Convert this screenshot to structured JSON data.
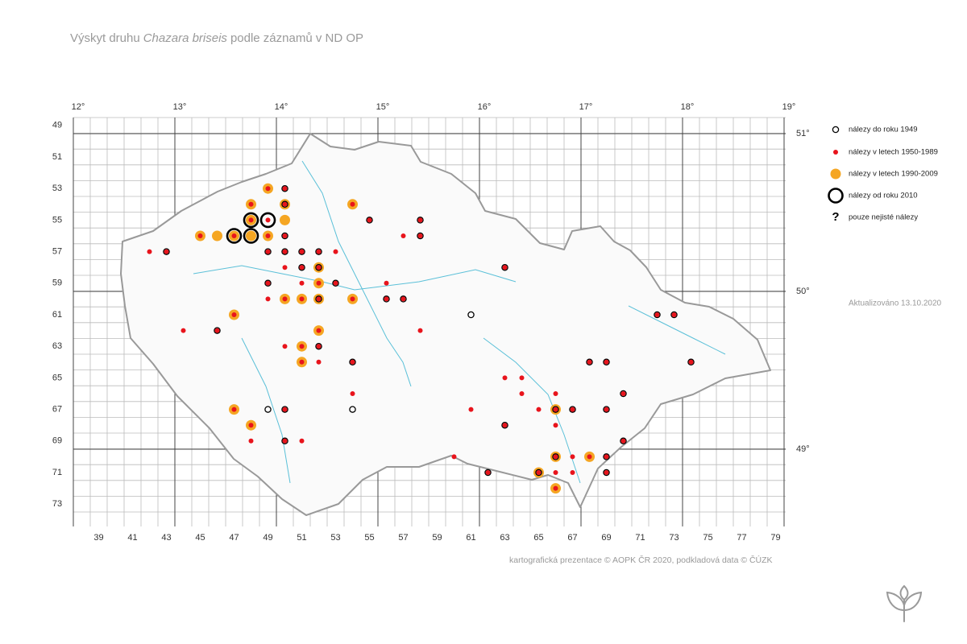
{
  "title": [
    "Výskyt druhu",
    "Chazara briseis",
    "podle záznamů v ND OP"
  ],
  "lon_ticks": [
    {
      "value": 12,
      "label": "12°"
    },
    {
      "value": 13,
      "label": "13°"
    },
    {
      "value": 14,
      "label": "14°"
    },
    {
      "value": 15,
      "label": "15°"
    },
    {
      "value": 16,
      "label": "16°"
    },
    {
      "value": 17,
      "label": "17°"
    },
    {
      "value": 18,
      "label": "18°"
    },
    {
      "value": 19,
      "label": "19°"
    }
  ],
  "lat_ticks": [
    {
      "value": 51,
      "label": "51°"
    },
    {
      "value": 50,
      "label": "50°"
    },
    {
      "value": 49,
      "label": "49°"
    }
  ],
  "col_ticks": [
    39,
    41,
    43,
    45,
    47,
    49,
    51,
    53,
    55,
    57,
    59,
    61,
    63,
    65,
    67,
    69,
    71,
    73,
    75,
    77,
    79
  ],
  "row_ticks": [
    49,
    51,
    53,
    55,
    57,
    59,
    61,
    63,
    65,
    67,
    69,
    71,
    73
  ],
  "legend": [
    "nálezy do roku 1949",
    "nálezy v letech 1950-1989",
    "nálezy v letech 1990-2009",
    "nálezy od roku 2010",
    "pouze nejisté nálezy"
  ],
  "uncertain_mark": "?",
  "updated": "Aktualizováno 13.10.2020",
  "credit": "kartografická prezentace © AOPK ČR 2020, podkladová data © ČÚZK",
  "points": [
    [
      49,
      53,
      [
        2,
        1
      ]
    ],
    [
      50,
      53,
      [
        0,
        1
      ]
    ],
    [
      48,
      54,
      [
        2,
        1
      ]
    ],
    [
      50,
      54,
      [
        2,
        0,
        1
      ]
    ],
    [
      54,
      54,
      [
        2,
        1
      ]
    ],
    [
      48,
      55,
      [
        3,
        2,
        1
      ]
    ],
    [
      49,
      55,
      [
        3,
        1
      ]
    ],
    [
      50,
      55,
      [
        2
      ]
    ],
    [
      55,
      55,
      [
        0,
        1
      ]
    ],
    [
      58,
      55,
      [
        0,
        1
      ]
    ],
    [
      45,
      56,
      [
        2,
        1
      ]
    ],
    [
      46,
      56,
      [
        2
      ]
    ],
    [
      47,
      56,
      [
        3,
        2,
        1
      ]
    ],
    [
      48,
      56,
      [
        3,
        2
      ]
    ],
    [
      49,
      56,
      [
        2,
        1
      ]
    ],
    [
      50,
      56,
      [
        0,
        1
      ]
    ],
    [
      57,
      56,
      [
        1
      ]
    ],
    [
      58,
      56,
      [
        0,
        1
      ]
    ],
    [
      42,
      57,
      [
        1
      ]
    ],
    [
      43,
      57,
      [
        0,
        1
      ]
    ],
    [
      49,
      57,
      [
        0,
        1
      ]
    ],
    [
      50,
      57,
      [
        0,
        1
      ]
    ],
    [
      51,
      57,
      [
        0,
        1
      ]
    ],
    [
      52,
      57,
      [
        0,
        1
      ]
    ],
    [
      53,
      57,
      [
        1
      ]
    ],
    [
      50,
      58,
      [
        1
      ]
    ],
    [
      51,
      58,
      [
        0,
        1
      ]
    ],
    [
      52,
      58,
      [
        2,
        0,
        1
      ]
    ],
    [
      63,
      58,
      [
        0,
        1
      ]
    ],
    [
      49,
      59,
      [
        0,
        1
      ]
    ],
    [
      51,
      59,
      [
        1
      ]
    ],
    [
      52,
      59,
      [
        2,
        1
      ]
    ],
    [
      53,
      59,
      [
        0,
        1
      ]
    ],
    [
      56,
      59,
      [
        1
      ]
    ],
    [
      49,
      60,
      [
        1
      ]
    ],
    [
      50,
      60,
      [
        2,
        1
      ]
    ],
    [
      51,
      60,
      [
        2,
        1
      ]
    ],
    [
      52,
      60,
      [
        2,
        0,
        1
      ]
    ],
    [
      54,
      60,
      [
        2,
        1
      ]
    ],
    [
      56,
      60,
      [
        0,
        1
      ]
    ],
    [
      57,
      60,
      [
        0,
        1
      ]
    ],
    [
      47,
      61,
      [
        2,
        1
      ]
    ],
    [
      61,
      61,
      [
        0
      ]
    ],
    [
      72,
      61,
      [
        0,
        1
      ]
    ],
    [
      73,
      61,
      [
        0,
        1
      ]
    ],
    [
      44,
      62,
      [
        1
      ]
    ],
    [
      46,
      62,
      [
        0,
        1
      ]
    ],
    [
      52,
      62,
      [
        2,
        1
      ]
    ],
    [
      58,
      62,
      [
        1
      ]
    ],
    [
      50,
      63,
      [
        1
      ]
    ],
    [
      51,
      63,
      [
        2,
        1
      ]
    ],
    [
      52,
      63,
      [
        0,
        1
      ]
    ],
    [
      51,
      64,
      [
        2,
        1
      ]
    ],
    [
      52,
      64,
      [
        1
      ]
    ],
    [
      54,
      64,
      [
        0,
        1
      ]
    ],
    [
      68,
      64,
      [
        0,
        1
      ]
    ],
    [
      69,
      64,
      [
        0,
        1
      ]
    ],
    [
      74,
      64,
      [
        0,
        1
      ]
    ],
    [
      63,
      65,
      [
        1
      ]
    ],
    [
      64,
      65,
      [
        1
      ]
    ],
    [
      54,
      66,
      [
        1
      ]
    ],
    [
      64,
      66,
      [
        1
      ]
    ],
    [
      66,
      66,
      [
        1
      ]
    ],
    [
      70,
      66,
      [
        0,
        1
      ]
    ],
    [
      47,
      67,
      [
        2,
        1
      ]
    ],
    [
      49,
      67,
      [
        0
      ]
    ],
    [
      50,
      67,
      [
        0,
        1
      ]
    ],
    [
      54,
      67,
      [
        0
      ]
    ],
    [
      61,
      67,
      [
        1
      ]
    ],
    [
      65,
      67,
      [
        1
      ]
    ],
    [
      66,
      67,
      [
        2,
        0,
        1
      ]
    ],
    [
      67,
      67,
      [
        0,
        1
      ]
    ],
    [
      69,
      67,
      [
        0,
        1
      ]
    ],
    [
      48,
      68,
      [
        2,
        1
      ]
    ],
    [
      63,
      68,
      [
        0,
        1
      ]
    ],
    [
      66,
      68,
      [
        1
      ]
    ],
    [
      48,
      69,
      [
        1
      ]
    ],
    [
      50,
      69,
      [
        0,
        1
      ]
    ],
    [
      51,
      69,
      [
        1
      ]
    ],
    [
      70,
      69,
      [
        0,
        1
      ]
    ],
    [
      60,
      70,
      [
        1
      ]
    ],
    [
      66,
      70,
      [
        2,
        0,
        1
      ]
    ],
    [
      67,
      70,
      [
        1
      ]
    ],
    [
      68,
      70,
      [
        2,
        1
      ]
    ],
    [
      69,
      70,
      [
        0,
        1
      ]
    ],
    [
      62,
      71,
      [
        0,
        1
      ]
    ],
    [
      65,
      71,
      [
        2,
        0,
        1
      ]
    ],
    [
      66,
      71,
      [
        1
      ]
    ],
    [
      67,
      71,
      [
        1
      ]
    ],
    [
      69,
      71,
      [
        0,
        1
      ]
    ],
    [
      66,
      72,
      [
        2,
        1
      ]
    ]
  ]
}
